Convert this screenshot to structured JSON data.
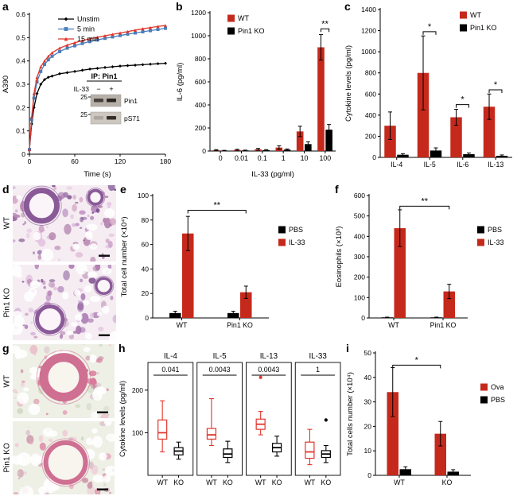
{
  "panel_labels": {
    "a": "a",
    "b": "b",
    "c": "c",
    "d": "d",
    "e": "e",
    "f": "f",
    "g": "g",
    "h": "h",
    "i": "i"
  },
  "histology": {
    "d": {
      "row_labels": [
        "WT",
        "Pin1 KO"
      ],
      "bg": "#f6edf3",
      "palette": [
        "#7c4d8f",
        "#a06cab",
        "#c79ccb",
        "#e3c3e0",
        "#d4a8c7",
        "#b585ae"
      ],
      "ring_color": "#8a5a98",
      "lumen": "#fbf5f9"
    },
    "g": {
      "row_labels": [
        "WT",
        "Pin1 KO"
      ],
      "bg": "#eef0e6",
      "palette": [
        "#d97a9b",
        "#e8a7bd",
        "#f0c9d6",
        "#dcc3cd",
        "#cfd8c2",
        "#c98fa6"
      ],
      "ring_color": "#cf6f92",
      "lumen": "#f8f4ee"
    }
  },
  "chart_data": [
    {
      "id": "a",
      "type": "line",
      "ylabel": "A390",
      "xlabel": "Time (s)",
      "ylim": [
        0,
        0.6
      ],
      "yticks": [
        0,
        0.1,
        0.2,
        0.3,
        0.4,
        0.5,
        0.6
      ],
      "xlim": [
        0,
        180
      ],
      "xticks": [
        0,
        60,
        120,
        180
      ],
      "x": [
        0,
        3,
        6,
        10,
        15,
        20,
        25,
        30,
        40,
        50,
        60,
        70,
        80,
        90,
        100,
        110,
        120,
        130,
        140,
        150,
        160,
        170,
        180
      ],
      "series": [
        {
          "name": "Unstim",
          "color": "#000000",
          "marker": "diamond",
          "values": [
            0.02,
            0.13,
            0.2,
            0.26,
            0.3,
            0.32,
            0.33,
            0.335,
            0.345,
            0.35,
            0.355,
            0.36,
            0.365,
            0.368,
            0.372,
            0.375,
            0.378,
            0.38,
            0.382,
            0.384,
            0.386,
            0.388,
            0.39
          ]
        },
        {
          "name": "5 min",
          "color": "#4a7ebb",
          "marker": "square",
          "values": [
            0.02,
            0.15,
            0.24,
            0.31,
            0.355,
            0.385,
            0.405,
            0.42,
            0.44,
            0.455,
            0.465,
            0.475,
            0.483,
            0.49,
            0.497,
            0.503,
            0.509,
            0.515,
            0.52,
            0.525,
            0.53,
            0.535,
            0.54
          ]
        },
        {
          "name": "15 min",
          "color": "#e0362c",
          "marker": "triangle",
          "values": [
            0.02,
            0.16,
            0.26,
            0.33,
            0.375,
            0.4,
            0.42,
            0.435,
            0.455,
            0.468,
            0.478,
            0.487,
            0.495,
            0.502,
            0.508,
            0.514,
            0.52,
            0.526,
            0.532,
            0.538,
            0.543,
            0.548,
            0.552
          ]
        }
      ],
      "inset": {
        "title": "IP: Pin1",
        "lane_label": "IL-33",
        "lanes": [
          "−",
          "+"
        ],
        "rows": [
          {
            "name": "Pin1",
            "mw": "25",
            "bands": [
              0.8,
              1
            ]
          },
          {
            "name": "pS71",
            "mw": "25",
            "bands": [
              0.2,
              0.95
            ]
          }
        ]
      }
    },
    {
      "id": "b",
      "type": "bar",
      "ylabel": "IL-6 (pg/ml)",
      "xlabel": "IL-33 (pg/ml)",
      "ylim": [
        0,
        1200
      ],
      "yticks": [
        0,
        200,
        400,
        600,
        800,
        1000,
        1200
      ],
      "categories": [
        "0",
        "0.01",
        "0.1",
        "1",
        "10",
        "100"
      ],
      "legend": "tl",
      "series": [
        {
          "name": "WT",
          "color": "#c5291c",
          "values": [
            8,
            10,
            15,
            30,
            170,
            900
          ],
          "errors": [
            4,
            5,
            8,
            15,
            45,
            110
          ]
        },
        {
          "name": "Pin1 KO",
          "color": "#000000",
          "values": [
            4,
            5,
            8,
            12,
            60,
            185
          ],
          "errors": [
            2,
            3,
            4,
            6,
            20,
            45
          ]
        }
      ],
      "sig": [
        {
          "label": "**",
          "c1": 5,
          "s1": 0,
          "c2": 5,
          "s2": 1,
          "y": 1060
        }
      ]
    },
    {
      "id": "c",
      "type": "bar",
      "ylabel": "Cytokine levels (pg/ml)",
      "xlabel": "",
      "ylim": [
        0,
        1400
      ],
      "yticks": [
        0,
        200,
        400,
        600,
        800,
        1000,
        1200,
        1400
      ],
      "categories": [
        "IL-4",
        "IL-5",
        "IL-6",
        "IL-13"
      ],
      "legend": "tr",
      "series": [
        {
          "name": "WT",
          "color": "#c5291c",
          "values": [
            300,
            800,
            380,
            480
          ],
          "errors": [
            130,
            350,
            75,
            120
          ]
        },
        {
          "name": "Pin1 KO",
          "color": "#000000",
          "values": [
            25,
            65,
            30,
            15
          ],
          "errors": [
            10,
            25,
            12,
            8
          ]
        }
      ],
      "sig": [
        {
          "label": "*",
          "c1": 1,
          "s1": 0,
          "c2": 1,
          "s2": 1,
          "y": 1190
        },
        {
          "label": "*",
          "c1": 2,
          "s1": 0,
          "c2": 2,
          "s2": 1,
          "y": 500
        },
        {
          "label": "*",
          "c1": 3,
          "s1": 0,
          "c2": 3,
          "s2": 1,
          "y": 640
        }
      ]
    },
    {
      "id": "e",
      "type": "bar",
      "ylabel": "Total cell number (×10⁴)",
      "xlabel": "",
      "ylim": [
        0,
        100
      ],
      "yticks": [
        0,
        20,
        40,
        60,
        80,
        100
      ],
      "categories": [
        "WT",
        "Pin1 KO"
      ],
      "legend": "r",
      "series": [
        {
          "name": "PBS",
          "color": "#000000",
          "values": [
            4,
            4
          ],
          "errors": [
            1.5,
            1.5
          ]
        },
        {
          "name": "IL-33",
          "color": "#c5291c",
          "values": [
            69,
            21
          ],
          "errors": [
            14,
            5
          ]
        }
      ],
      "sig": [
        {
          "label": "**",
          "c1": 0,
          "s1": 1,
          "c2": 1,
          "s2": 1,
          "y": 88
        }
      ]
    },
    {
      "id": "f",
      "type": "bar",
      "ylabel": "Eosinophils (×10³)",
      "xlabel": "",
      "ylim": [
        0,
        600
      ],
      "yticks": [
        0,
        100,
        200,
        300,
        400,
        500,
        600
      ],
      "categories": [
        "WT",
        "Pin1 KO"
      ],
      "legend": "r",
      "series": [
        {
          "name": "PBS",
          "color": "#000000",
          "values": [
            3,
            3
          ],
          "errors": [
            1,
            1
          ]
        },
        {
          "name": "IL-33",
          "color": "#c5291c",
          "values": [
            440,
            130
          ],
          "errors": [
            90,
            35
          ]
        }
      ],
      "sig": [
        {
          "label": "**",
          "c1": 0,
          "s1": 1,
          "c2": 1,
          "s2": 1,
          "y": 548
        }
      ]
    },
    {
      "id": "h",
      "type": "box",
      "ylabel": "Cytokine levels (pg/ml)",
      "ylim": [
        0,
        265
      ],
      "yticks": [
        100,
        200
      ],
      "panels": [
        {
          "title": "IL-4",
          "p": "0.041",
          "groups": [
            {
              "name": "WT",
              "color": "#e0362c",
              "whislo": 55,
              "q1": 85,
              "med": 100,
              "q3": 130,
              "whishi": 175,
              "outliers": []
            },
            {
              "name": "KO",
              "color": "#000000",
              "whislo": 38,
              "q1": 48,
              "med": 57,
              "q3": 65,
              "whishi": 78,
              "outliers": []
            }
          ]
        },
        {
          "title": "IL-5",
          "p": "0.0043",
          "groups": [
            {
              "name": "WT",
              "color": "#e0362c",
              "whislo": 70,
              "q1": 85,
              "med": 95,
              "q3": 110,
              "whishi": 180,
              "outliers": []
            },
            {
              "name": "KO",
              "color": "#000000",
              "whislo": 30,
              "q1": 42,
              "med": 50,
              "q3": 62,
              "whishi": 80,
              "outliers": []
            }
          ]
        },
        {
          "title": "IL-13",
          "p": "0.0043",
          "groups": [
            {
              "name": "WT",
              "color": "#e0362c",
              "whislo": 95,
              "q1": 108,
              "med": 120,
              "q3": 132,
              "whishi": 150,
              "outliers": [
                230
              ]
            },
            {
              "name": "KO",
              "color": "#000000",
              "whislo": 45,
              "q1": 55,
              "med": 65,
              "q3": 75,
              "whishi": 92,
              "outliers": []
            }
          ]
        },
        {
          "title": "IL-33",
          "p": "1",
          "groups": [
            {
              "name": "WT",
              "color": "#e0362c",
              "whislo": 25,
              "q1": 40,
              "med": 55,
              "q3": 78,
              "whishi": 108,
              "outliers": []
            },
            {
              "name": "KO",
              "color": "#000000",
              "whislo": 30,
              "q1": 42,
              "med": 50,
              "q3": 58,
              "whishi": 70,
              "outliers": [
                130
              ]
            }
          ]
        }
      ]
    },
    {
      "id": "i",
      "type": "bar",
      "ylabel": "Total cells number (×10⁴)",
      "xlabel": "",
      "ylim": [
        0,
        50
      ],
      "yticks": [
        0,
        10,
        20,
        30,
        40,
        50
      ],
      "categories": [
        "WT",
        "KO"
      ],
      "legend": "r",
      "series": [
        {
          "name": "Ova",
          "color": "#c5291c",
          "values": [
            34,
            17
          ],
          "errors": [
            10,
            5
          ]
        },
        {
          "name": "PBS",
          "color": "#000000",
          "values": [
            2.5,
            1.5
          ],
          "errors": [
            1,
            0.8
          ]
        }
      ],
      "sig": [
        {
          "label": "*",
          "c1": 0,
          "s1": 0,
          "c2": 1,
          "s2": 0,
          "y": 45
        }
      ]
    }
  ]
}
